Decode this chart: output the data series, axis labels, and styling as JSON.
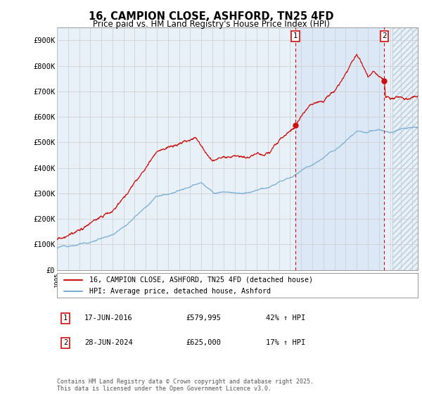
{
  "title": "16, CAMPION CLOSE, ASHFORD, TN25 4FD",
  "subtitle": "Price paid vs. HM Land Registry's House Price Index (HPI)",
  "ylim": [
    0,
    950000
  ],
  "yticks": [
    0,
    100000,
    200000,
    300000,
    400000,
    500000,
    600000,
    700000,
    800000,
    900000
  ],
  "ytick_labels": [
    "£0",
    "£100K",
    "£200K",
    "£300K",
    "£400K",
    "£500K",
    "£600K",
    "£700K",
    "£800K",
    "£900K"
  ],
  "xlim_start": 1995.0,
  "xlim_end": 2027.5,
  "hpi_color": "#7ab0d4",
  "price_color": "#cc1111",
  "grid_color": "#cccccc",
  "bg_color": "#e8f0f8",
  "highlight_bg": "#dce8f5",
  "hatch_bg": "#d0dce8",
  "sale1_x": 2016.46,
  "sale1_y": 579995,
  "sale2_x": 2024.49,
  "sale2_y": 625000,
  "future_start": 2025.2,
  "sale1_label": "17-JUN-2016",
  "sale1_price": "£579,995",
  "sale1_change": "42% ↑ HPI",
  "sale2_label": "28-JUN-2024",
  "sale2_price": "£625,000",
  "sale2_change": "17% ↑ HPI",
  "legend_line1": "16, CAMPION CLOSE, ASHFORD, TN25 4FD (detached house)",
  "legend_line2": "HPI: Average price, detached house, Ashford",
  "footer": "Contains HM Land Registry data © Crown copyright and database right 2025.\nThis data is licensed under the Open Government Licence v3.0."
}
